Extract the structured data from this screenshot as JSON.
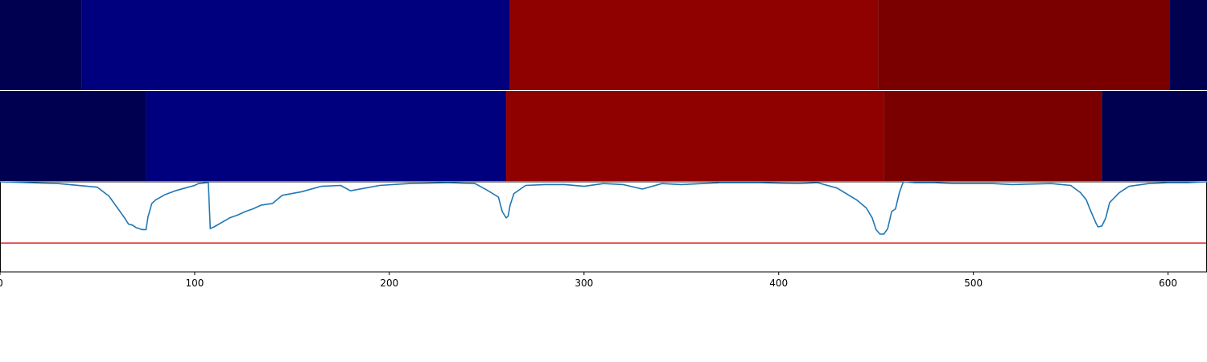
{
  "chart_data": {
    "type": "line",
    "title": "",
    "xlabel": "",
    "ylabel": "",
    "xlim": [
      0,
      620
    ],
    "ylim": [
      -1.0,
      0.0
    ],
    "x_ticks": [
      0,
      100,
      200,
      300,
      400,
      500,
      600
    ],
    "x_tick_labels": [
      "0",
      "100",
      "200",
      "300",
      "400",
      "500",
      "600"
    ],
    "grid": false,
    "legend": "none",
    "segment_rows": [
      {
        "segments": [
          {
            "start": 0,
            "end": 42,
            "color": "#000050"
          },
          {
            "start": 42,
            "end": 262,
            "color": "#00007f"
          },
          {
            "start": 262,
            "end": 451,
            "color": "#8f0000"
          },
          {
            "start": 451,
            "end": 601,
            "color": "#7a0000"
          },
          {
            "start": 601,
            "end": 620,
            "color": "#000050"
          }
        ]
      },
      {
        "segments": [
          {
            "start": 0,
            "end": 75,
            "color": "#000050"
          },
          {
            "start": 75,
            "end": 260,
            "color": "#00007f"
          },
          {
            "start": 260,
            "end": 454,
            "color": "#8f0000"
          },
          {
            "start": 454,
            "end": 566,
            "color": "#7a0000"
          },
          {
            "start": 566,
            "end": 620,
            "color": "#000050"
          }
        ]
      }
    ],
    "series": [
      {
        "color": "#1f77b4",
        "x": [
          0,
          30,
          50,
          56,
          60,
          64,
          66,
          68,
          70,
          73,
          75,
          76,
          78,
          80,
          85,
          90,
          95,
          100,
          102,
          106,
          107,
          108,
          110,
          114,
          118,
          122,
          126,
          130,
          134,
          140,
          145,
          155,
          165,
          175,
          180,
          195,
          210,
          230,
          244,
          250,
          256,
          258,
          260,
          261,
          262,
          264,
          270,
          280,
          290,
          300,
          310,
          320,
          330,
          340,
          350,
          370,
          390,
          410,
          420,
          430,
          440,
          445,
          448,
          450,
          452,
          454,
          456,
          458,
          460,
          462,
          464,
          470,
          480,
          490,
          500,
          510,
          520,
          540,
          550,
          555,
          558,
          560,
          563,
          564,
          566,
          568,
          570,
          575,
          580,
          590,
          600,
          610,
          620
        ],
        "y": [
          0.0,
          -0.02,
          -0.06,
          -0.16,
          -0.28,
          -0.4,
          -0.47,
          -0.48,
          -0.51,
          -0.53,
          -0.53,
          -0.39,
          -0.24,
          -0.2,
          -0.14,
          -0.1,
          -0.07,
          -0.04,
          -0.02,
          -0.01,
          -0.01,
          -0.52,
          -0.5,
          -0.45,
          -0.4,
          -0.37,
          -0.33,
          -0.3,
          -0.26,
          -0.24,
          -0.15,
          -0.11,
          -0.05,
          -0.04,
          -0.1,
          -0.04,
          -0.02,
          -0.01,
          -0.02,
          -0.09,
          -0.17,
          -0.33,
          -0.4,
          -0.38,
          -0.26,
          -0.13,
          -0.04,
          -0.03,
          -0.03,
          -0.05,
          -0.02,
          -0.03,
          -0.08,
          -0.02,
          -0.03,
          -0.01,
          -0.01,
          -0.02,
          -0.01,
          -0.07,
          -0.2,
          -0.29,
          -0.4,
          -0.53,
          -0.58,
          -0.58,
          -0.52,
          -0.33,
          -0.3,
          -0.12,
          0.0,
          -0.01,
          -0.01,
          -0.02,
          -0.02,
          -0.02,
          -0.03,
          -0.02,
          -0.04,
          -0.12,
          -0.2,
          -0.31,
          -0.46,
          -0.5,
          -0.49,
          -0.4,
          -0.23,
          -0.12,
          -0.05,
          -0.02,
          -0.01,
          -0.01,
          0.0
        ]
      }
    ],
    "hline": {
      "y": -0.68,
      "color": "#d62728"
    }
  }
}
